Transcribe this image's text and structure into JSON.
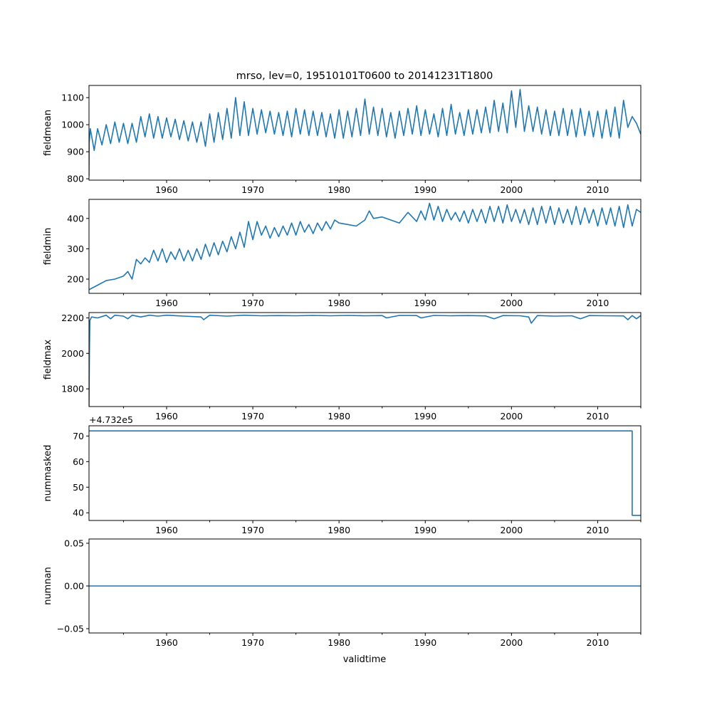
{
  "figure": {
    "title": "mrso, lev=0, 19510101T0600 to 20141231T1800",
    "xlabel": "validtime"
  },
  "colors": {
    "series": "#1f77b4",
    "background": "#ffffff",
    "axes": "#000000"
  },
  "chart_data": [
    {
      "type": "line",
      "ylabel": "fieldmean",
      "xlim": [
        1951.0,
        2015.0
      ],
      "ylim": [
        795,
        1145
      ],
      "x_ticks": [
        1960,
        1970,
        1980,
        1990,
        2000,
        2010
      ],
      "x_tick_labels": [
        "1960",
        "1970",
        "1980",
        "1990",
        "2000",
        "2010"
      ],
      "y_ticks": [
        800,
        900,
        1000,
        1100
      ],
      "y_tick_labels": [
        "800",
        "900",
        "1000",
        "1100"
      ],
      "series": [
        {
          "x": [
            1951.0,
            1951.02,
            1951.15,
            1951.6,
            1952.0,
            1952.5,
            1953.0,
            1953.5,
            1954.0,
            1954.5,
            1955.0,
            1955.5,
            1956.0,
            1956.5,
            1957.0,
            1957.5,
            1958.0,
            1958.5,
            1959.0,
            1959.5,
            1960.0,
            1960.5,
            1961.0,
            1961.5,
            1962.0,
            1962.5,
            1963.0,
            1963.5,
            1964.0,
            1964.5,
            1965.0,
            1965.5,
            1966.0,
            1966.5,
            1967.0,
            1967.5,
            1968.0,
            1968.5,
            1969.0,
            1969.5,
            1970.0,
            1970.5,
            1971.0,
            1971.5,
            1972.0,
            1972.5,
            1973.0,
            1973.5,
            1974.0,
            1974.5,
            1975.0,
            1975.5,
            1976.0,
            1976.5,
            1977.0,
            1977.5,
            1978.0,
            1978.5,
            1979.0,
            1979.5,
            1980.0,
            1980.5,
            1981.0,
            1981.5,
            1982.0,
            1982.5,
            1983.0,
            1983.5,
            1984.0,
            1984.5,
            1985.0,
            1985.5,
            1986.0,
            1986.5,
            1987.0,
            1987.5,
            1988.0,
            1988.5,
            1989.0,
            1989.5,
            1990.0,
            1990.5,
            1991.0,
            1991.5,
            1992.0,
            1992.5,
            1993.0,
            1993.5,
            1994.0,
            1994.5,
            1995.0,
            1995.5,
            1996.0,
            1996.5,
            1997.0,
            1997.5,
            1998.0,
            1998.5,
            1999.0,
            1999.5,
            2000.0,
            2000.5,
            2001.0,
            2001.5,
            2002.0,
            2002.5,
            2003.0,
            2003.5,
            2004.0,
            2004.5,
            2005.0,
            2005.5,
            2006.0,
            2006.5,
            2007.0,
            2007.5,
            2008.0,
            2008.5,
            2009.0,
            2009.5,
            2010.0,
            2010.5,
            2011.0,
            2011.5,
            2012.0,
            2012.5,
            2013.0,
            2013.5,
            2014.0,
            2014.5,
            2015.0
          ],
          "y": [
            810,
            930,
            985,
            905,
            985,
            925,
            1000,
            930,
            1010,
            935,
            1005,
            930,
            1005,
            935,
            1030,
            955,
            1040,
            950,
            1030,
            950,
            1025,
            955,
            1020,
            945,
            1015,
            940,
            1010,
            935,
            1010,
            920,
            1040,
            935,
            1045,
            945,
            1060,
            950,
            1100,
            960,
            1085,
            960,
            1060,
            965,
            1055,
            970,
            1050,
            965,
            1045,
            960,
            1050,
            955,
            1060,
            965,
            1055,
            960,
            1050,
            960,
            1045,
            955,
            1040,
            950,
            1055,
            950,
            1050,
            955,
            1060,
            960,
            1095,
            965,
            1065,
            960,
            1060,
            955,
            1045,
            950,
            1050,
            960,
            1060,
            965,
            1070,
            960,
            1055,
            965,
            1040,
            955,
            1060,
            960,
            1075,
            965,
            1045,
            960,
            1055,
            965,
            1055,
            970,
            1065,
            970,
            1090,
            975,
            1080,
            970,
            1125,
            990,
            1130,
            975,
            1070,
            975,
            1065,
            965,
            1055,
            960,
            1050,
            960,
            1060,
            960,
            1055,
            955,
            1060,
            960,
            1050,
            955,
            1050,
            950,
            1055,
            955,
            1065,
            950,
            1090,
            990,
            1030,
            1005,
            965
          ]
        }
      ]
    },
    {
      "type": "line",
      "ylabel": "fieldmin",
      "xlim": [
        1951.0,
        2015.0
      ],
      "ylim": [
        153,
        463
      ],
      "x_ticks": [
        1960,
        1970,
        1980,
        1990,
        2000,
        2010
      ],
      "x_tick_labels": [
        "1960",
        "1970",
        "1980",
        "1990",
        "2000",
        "2010"
      ],
      "y_ticks": [
        200,
        300,
        400
      ],
      "y_tick_labels": [
        "200",
        "300",
        "400"
      ],
      "series": [
        {
          "x": [
            1951.0,
            1952.0,
            1953.0,
            1954.0,
            1955.0,
            1955.5,
            1956.0,
            1956.5,
            1957.0,
            1957.5,
            1958.0,
            1958.5,
            1959.0,
            1959.5,
            1960.0,
            1960.5,
            1961.0,
            1961.5,
            1962.0,
            1962.5,
            1963.0,
            1963.5,
            1964.0,
            1964.5,
            1965.0,
            1965.5,
            1966.0,
            1966.5,
            1967.0,
            1967.5,
            1968.0,
            1968.5,
            1969.0,
            1969.5,
            1970.0,
            1970.5,
            1971.0,
            1971.5,
            1972.0,
            1972.5,
            1973.0,
            1973.5,
            1974.0,
            1974.5,
            1975.0,
            1975.5,
            1976.0,
            1976.5,
            1977.0,
            1977.5,
            1978.0,
            1978.5,
            1979.0,
            1979.5,
            1980.0,
            1981.0,
            1982.0,
            1983.0,
            1983.5,
            1984.0,
            1985.0,
            1986.0,
            1987.0,
            1988.0,
            1989.0,
            1989.5,
            1990.0,
            1990.5,
            1991.0,
            1991.5,
            1992.0,
            1992.5,
            1993.0,
            1993.5,
            1994.0,
            1994.5,
            1995.0,
            1995.5,
            1996.0,
            1996.5,
            1997.0,
            1997.5,
            1998.0,
            1998.5,
            1999.0,
            1999.5,
            2000.0,
            2000.5,
            2001.0,
            2001.5,
            2002.0,
            2002.5,
            2003.0,
            2003.5,
            2004.0,
            2004.5,
            2005.0,
            2005.5,
            2006.0,
            2006.5,
            2007.0,
            2007.5,
            2008.0,
            2008.5,
            2009.0,
            2009.5,
            2010.0,
            2010.5,
            2011.0,
            2011.5,
            2012.0,
            2012.5,
            2013.0,
            2013.5,
            2014.0,
            2014.5,
            2015.0
          ],
          "y": [
            165,
            180,
            195,
            200,
            210,
            225,
            200,
            265,
            250,
            270,
            255,
            295,
            260,
            300,
            255,
            290,
            265,
            300,
            260,
            295,
            260,
            300,
            265,
            315,
            275,
            320,
            280,
            325,
            290,
            340,
            300,
            355,
            305,
            390,
            330,
            390,
            345,
            375,
            335,
            370,
            340,
            375,
            345,
            385,
            345,
            390,
            355,
            380,
            350,
            385,
            360,
            390,
            365,
            395,
            385,
            380,
            375,
            395,
            425,
            400,
            405,
            395,
            385,
            420,
            390,
            425,
            395,
            450,
            395,
            440,
            390,
            430,
            395,
            420,
            390,
            425,
            385,
            430,
            390,
            430,
            385,
            440,
            390,
            440,
            385,
            445,
            390,
            430,
            385,
            430,
            380,
            435,
            380,
            440,
            385,
            440,
            380,
            435,
            385,
            430,
            380,
            440,
            380,
            435,
            385,
            430,
            375,
            435,
            380,
            435,
            375,
            440,
            370,
            445,
            375,
            430,
            420
          ]
        }
      ]
    },
    {
      "type": "line",
      "ylabel": "fieldmax",
      "xlim": [
        1951.0,
        2015.0
      ],
      "ylim": [
        1700,
        2230
      ],
      "x_ticks": [
        1960,
        1970,
        1980,
        1990,
        2000,
        2010
      ],
      "x_tick_labels": [
        "1960",
        "1970",
        "1980",
        "1990",
        "2000",
        "2010"
      ],
      "y_ticks": [
        1800,
        2000,
        2200
      ],
      "y_tick_labels": [
        "1800",
        "2000",
        "2200"
      ],
      "series": [
        {
          "x": [
            1951.0,
            1951.05,
            1951.1,
            1951.3,
            1952.0,
            1953.0,
            1953.5,
            1954.0,
            1955.0,
            1955.5,
            1956.0,
            1957.0,
            1958.0,
            1959.0,
            1960.0,
            1962.0,
            1964.0,
            1964.3,
            1965.0,
            1967.0,
            1969.0,
            1971.0,
            1973.0,
            1975.0,
            1977.0,
            1979.0,
            1981.0,
            1983.0,
            1985.0,
            1985.5,
            1987.0,
            1989.0,
            1989.5,
            1991.0,
            1993.0,
            1995.0,
            1997.0,
            1998.0,
            1999.0,
            2001.0,
            2002.0,
            2002.3,
            2003.0,
            2005.0,
            2007.0,
            2008.0,
            2009.0,
            2011.0,
            2013.0,
            2013.5,
            2014.0,
            2014.5,
            2015.0
          ],
          "y": [
            1700,
            2010,
            2185,
            2205,
            2200,
            2215,
            2195,
            2215,
            2210,
            2195,
            2215,
            2205,
            2215,
            2210,
            2215,
            2210,
            2205,
            2190,
            2215,
            2210,
            2215,
            2212,
            2213,
            2212,
            2214,
            2212,
            2214,
            2212,
            2213,
            2200,
            2214,
            2213,
            2200,
            2214,
            2212,
            2213,
            2211,
            2195,
            2213,
            2212,
            2205,
            2170,
            2213,
            2210,
            2212,
            2195,
            2213,
            2212,
            2211,
            2190,
            2213,
            2195,
            2213
          ]
        }
      ]
    },
    {
      "type": "line",
      "ylabel": "nummasked",
      "offset_label": "+4.732e5",
      "xlim": [
        1951.0,
        2015.0
      ],
      "ylim": [
        37,
        74
      ],
      "x_ticks": [
        1960,
        1970,
        1980,
        1990,
        2000,
        2010
      ],
      "x_tick_labels": [
        "1960",
        "1970",
        "1980",
        "1990",
        "2000",
        "2010"
      ],
      "y_ticks": [
        40,
        50,
        60,
        70
      ],
      "y_tick_labels": [
        "40",
        "50",
        "60",
        "70"
      ],
      "series": [
        {
          "x": [
            1951.0,
            2014.0,
            2014.0,
            2015.0
          ],
          "y": [
            72,
            72,
            39,
            39
          ]
        }
      ]
    },
    {
      "type": "line",
      "ylabel": "numnan",
      "xlim": [
        1951.0,
        2015.0
      ],
      "ylim": [
        -0.055,
        0.055
      ],
      "x_ticks": [
        1960,
        1970,
        1980,
        1990,
        2000,
        2010
      ],
      "x_tick_labels": [
        "1960",
        "1970",
        "1980",
        "1990",
        "2000",
        "2010"
      ],
      "y_ticks": [
        -0.05,
        0.0,
        0.05
      ],
      "y_tick_labels": [
        "−0.05",
        "0.00",
        "0.05"
      ],
      "series": [
        {
          "x": [
            1951.0,
            2015.0
          ],
          "y": [
            0,
            0
          ]
        }
      ]
    }
  ]
}
